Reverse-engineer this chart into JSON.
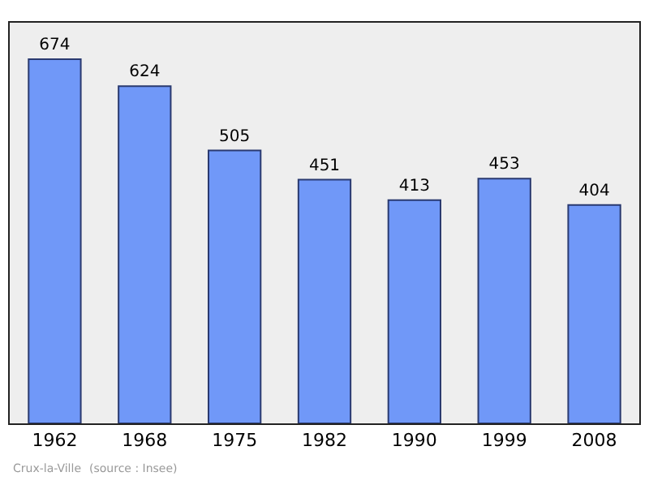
{
  "chart_data": {
    "type": "bar",
    "categories": [
      "1962",
      "1968",
      "1975",
      "1982",
      "1990",
      "1999",
      "2008"
    ],
    "values": [
      674,
      624,
      505,
      451,
      413,
      453,
      404
    ],
    "color": "#7098f8",
    "data_labels": true,
    "annotations": [
      "Crux-la-Ville",
      "(source : Insee)"
    ]
  }
}
